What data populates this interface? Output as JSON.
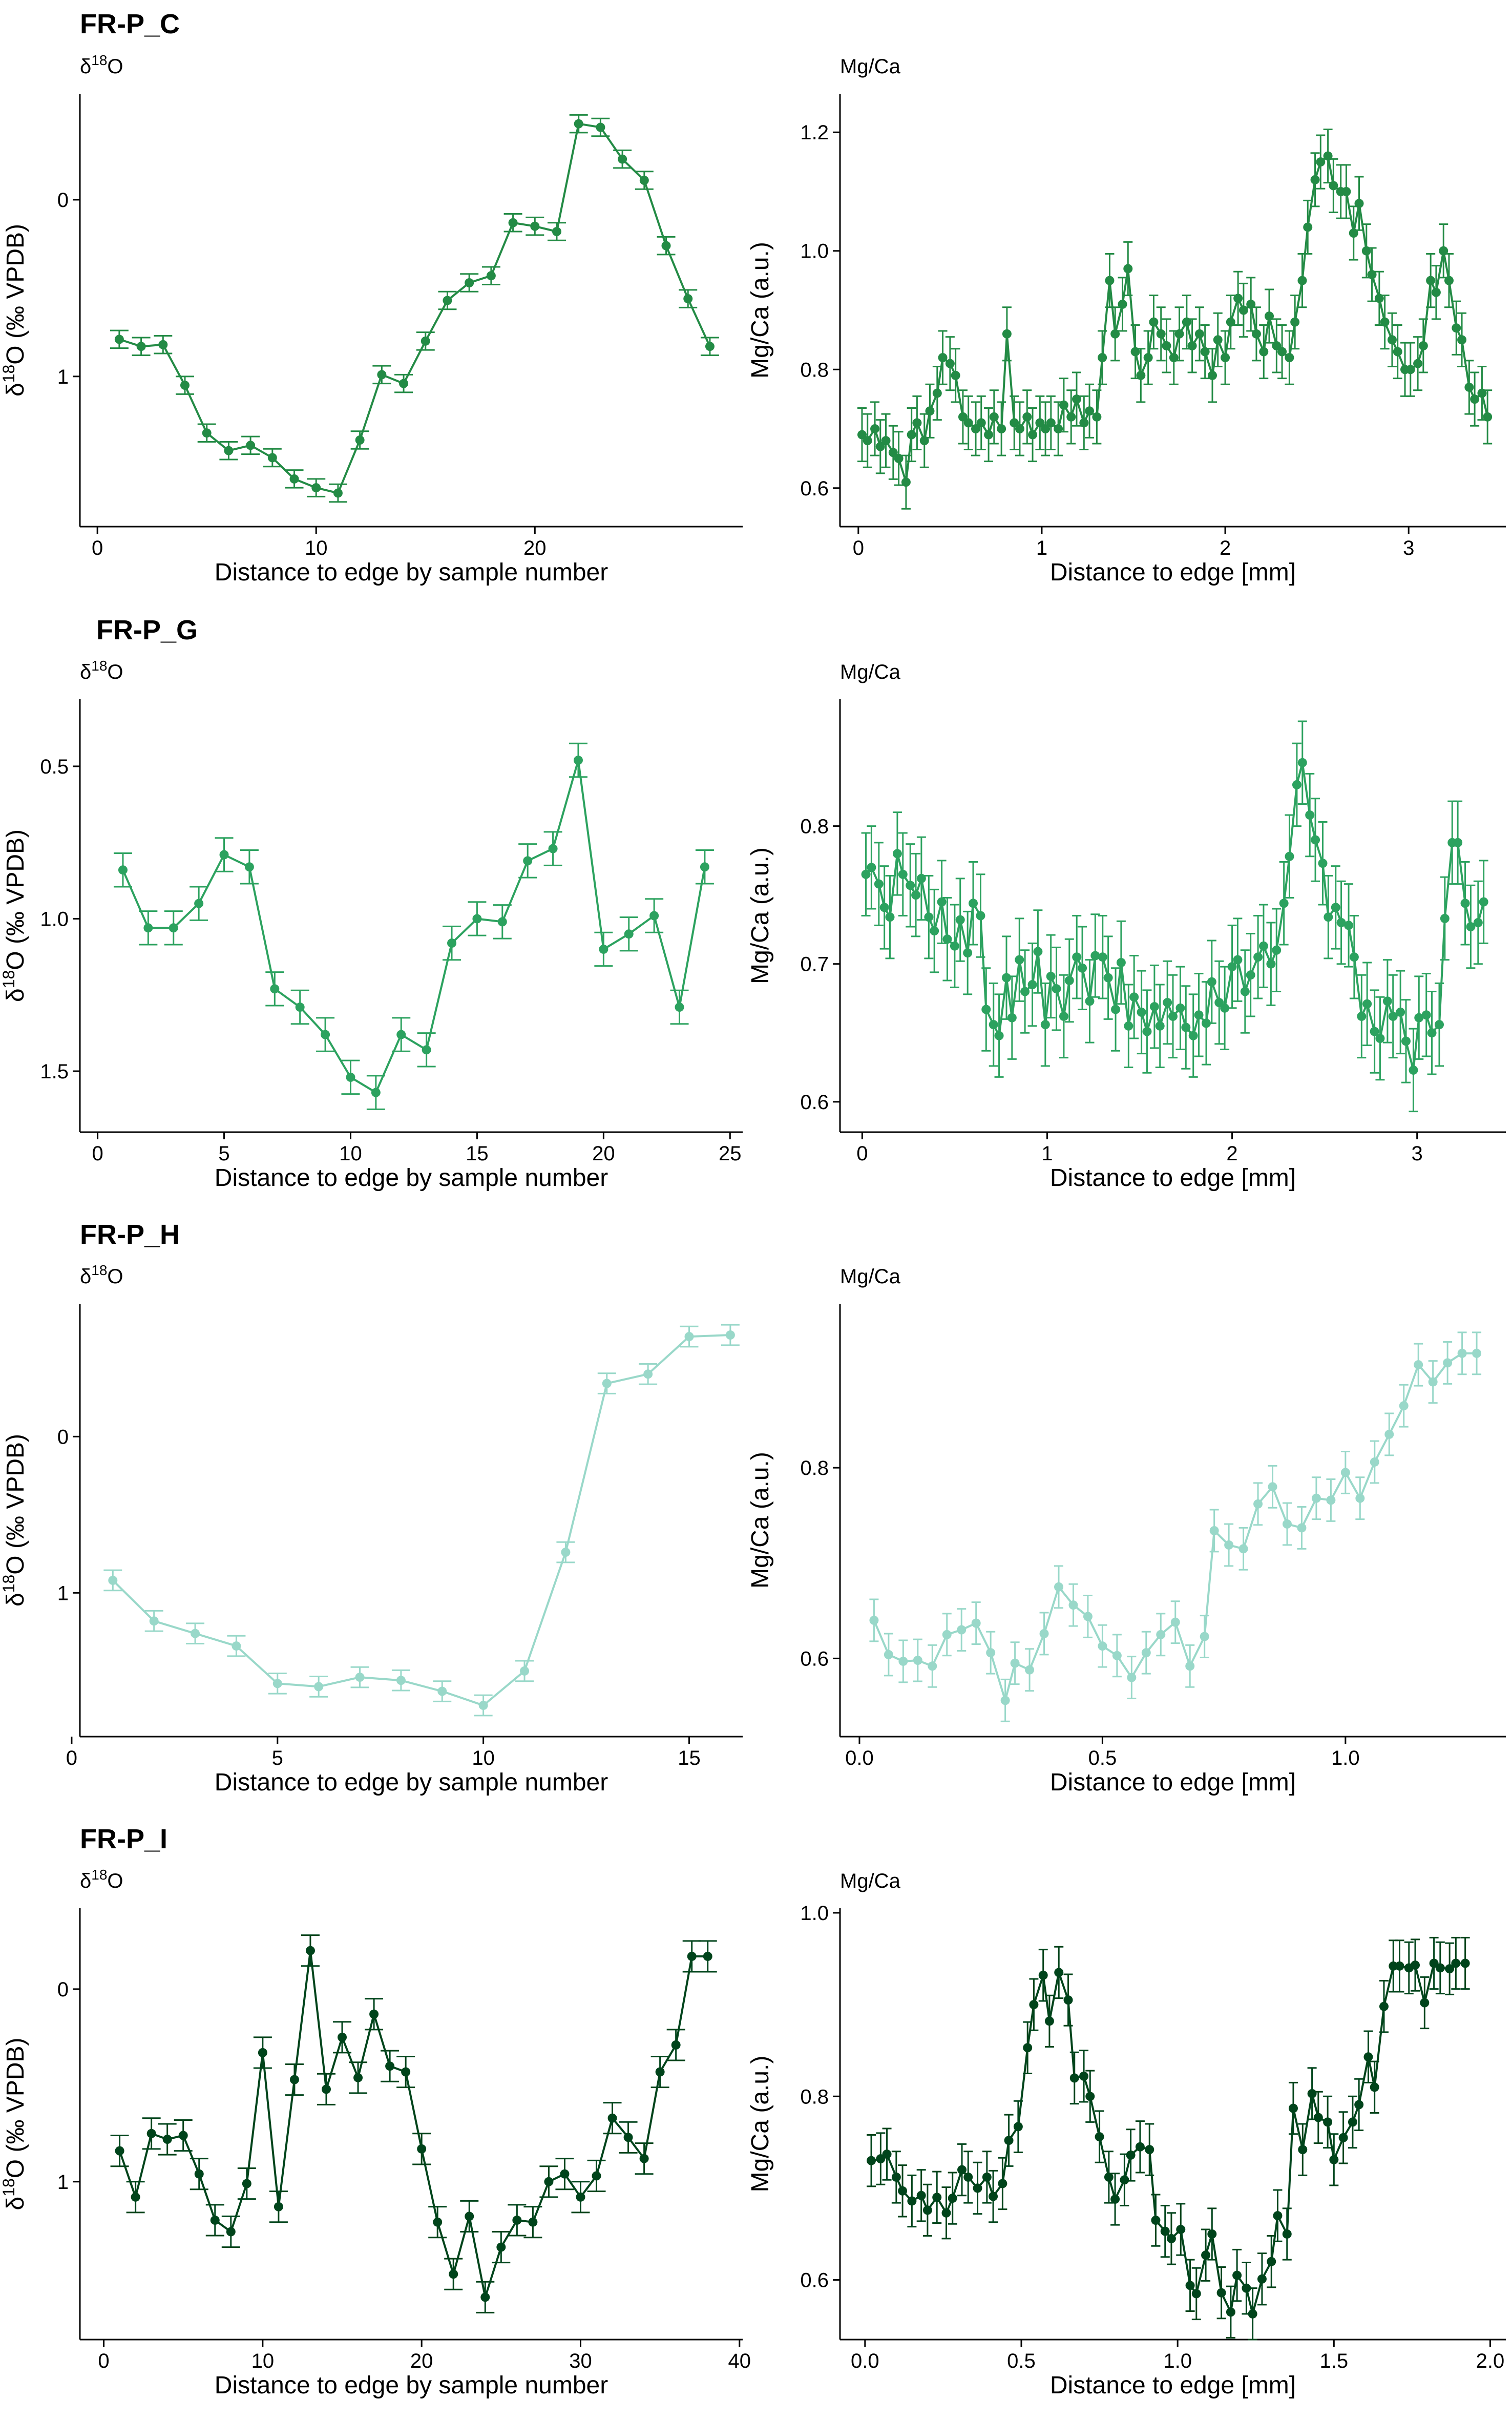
{
  "figure": {
    "rows": [
      {
        "title": "FR-P_C",
        "left_header": "δ18O",
        "right_header": "Mg/Ca"
      },
      {
        "title": "FR-P_G",
        "left_header": "δ18O",
        "right_header": "Mg/Ca"
      },
      {
        "title": "FR-P_H",
        "left_header": "δ18O",
        "right_header": "Mg/Ca"
      },
      {
        "title": "FR-P_I",
        "left_header": "δ18O",
        "right_header": "Mg/Ca"
      }
    ]
  },
  "chart_data": [
    {
      "type": "line",
      "title": "FR-P_C",
      "header": "δ18O",
      "xlabel": "Distance to edge by sample number",
      "ylabel": "δ18O (‰ VPDB)",
      "reversed_y": true,
      "xlim": [
        -0.8,
        29.5
      ],
      "ylim": [
        -0.6,
        1.85
      ],
      "xticks": [
        0,
        10,
        20
      ],
      "yticks": [
        0,
        1
      ],
      "ytick_labels": [
        "0",
        "1"
      ],
      "color": "#238b45",
      "error": 0.05,
      "x": [
        1,
        2,
        3,
        4,
        5,
        6,
        7,
        8,
        9,
        10,
        11,
        12,
        13,
        14,
        15,
        16,
        17,
        18,
        19,
        20,
        21,
        22,
        23,
        24,
        25,
        26,
        27,
        28
      ],
      "y": [
        0.79,
        0.83,
        0.82,
        1.05,
        1.32,
        1.42,
        1.39,
        1.46,
        1.58,
        1.63,
        1.66,
        1.36,
        0.99,
        1.04,
        0.8,
        0.57,
        0.47,
        0.43,
        0.13,
        0.15,
        0.18,
        -0.43,
        -0.41,
        -0.23,
        -0.11,
        0.26,
        0.56,
        0.83
      ],
      "error_bars": true
    },
    {
      "type": "line",
      "title": "FR-P_C",
      "header": "Mg/Ca",
      "xlabel": "Distance to edge [mm]",
      "ylabel": "Mg/Ca (a.u.)",
      "xlim": [
        -0.1,
        3.53
      ],
      "ylim": [
        0.535,
        1.265
      ],
      "xticks": [
        0,
        1,
        2,
        3
      ],
      "yticks": [
        0.6,
        0.8,
        1.0,
        1.2
      ],
      "ytick_labels": [
        "0.6",
        "0.8",
        "1.0",
        "1.2"
      ],
      "color": "#238b45",
      "error": 0.045,
      "x": [
        0.02,
        0.05,
        0.09,
        0.12,
        0.15,
        0.19,
        0.22,
        0.26,
        0.29,
        0.32,
        0.36,
        0.39,
        0.43,
        0.46,
        0.5,
        0.53,
        0.57,
        0.6,
        0.64,
        0.67,
        0.71,
        0.74,
        0.78,
        0.81,
        0.85,
        0.88,
        0.92,
        0.95,
        0.99,
        1.02,
        1.05,
        1.09,
        1.12,
        1.16,
        1.19,
        1.23,
        1.26,
        1.3,
        1.33,
        1.37,
        1.4,
        1.44,
        1.47,
        1.51,
        1.54,
        1.58,
        1.61,
        1.65,
        1.68,
        1.72,
        1.75,
        1.79,
        1.82,
        1.86,
        1.89,
        1.93,
        1.96,
        2.0,
        2.03,
        2.07,
        2.1,
        2.14,
        2.17,
        2.21,
        2.24,
        2.28,
        2.31,
        2.35,
        2.38,
        2.42,
        2.45,
        2.49,
        2.52,
        2.56,
        2.59,
        2.63,
        2.66,
        2.7,
        2.73,
        2.77,
        2.8,
        2.84,
        2.87,
        2.91,
        2.94,
        2.98,
        3.01,
        3.05,
        3.08,
        3.12,
        3.15,
        3.19,
        3.22,
        3.26,
        3.29,
        3.33,
        3.36,
        3.4,
        3.43
      ],
      "y": [
        0.69,
        0.68,
        0.7,
        0.67,
        0.68,
        0.66,
        0.65,
        0.61,
        0.69,
        0.71,
        0.68,
        0.73,
        0.76,
        0.82,
        0.81,
        0.79,
        0.72,
        0.71,
        0.7,
        0.71,
        0.69,
        0.72,
        0.7,
        0.86,
        0.71,
        0.7,
        0.72,
        0.69,
        0.71,
        0.7,
        0.71,
        0.7,
        0.74,
        0.72,
        0.75,
        0.71,
        0.73,
        0.72,
        0.82,
        0.95,
        0.86,
        0.91,
        0.97,
        0.83,
        0.79,
        0.82,
        0.88,
        0.86,
        0.84,
        0.82,
        0.86,
        0.88,
        0.84,
        0.86,
        0.83,
        0.79,
        0.85,
        0.82,
        0.88,
        0.92,
        0.9,
        0.91,
        0.86,
        0.83,
        0.89,
        0.84,
        0.83,
        0.82,
        0.88,
        0.95,
        1.04,
        1.12,
        1.15,
        1.16,
        1.11,
        1.1,
        1.1,
        1.03,
        1.08,
        1.0,
        0.96,
        0.92,
        0.88,
        0.85,
        0.83,
        0.8,
        0.8,
        0.81,
        0.84,
        0.95,
        0.93,
        1.0,
        0.95,
        0.87,
        0.85,
        0.77,
        0.75,
        0.76,
        0.72
      ],
      "error_bars": true
    },
    {
      "type": "line",
      "title": "FR-P_G",
      "header": "δ18O",
      "xlabel": "Distance to edge by sample number",
      "ylabel": "δ18O (‰ VPDB)",
      "reversed_y": true,
      "xlim": [
        -0.7,
        25.5
      ],
      "ylim": [
        0.28,
        1.7
      ],
      "xticks": [
        0,
        5,
        10,
        15,
        20,
        25
      ],
      "yticks": [
        0.5,
        1.0,
        1.5
      ],
      "ytick_labels": [
        "0.5",
        "1.0",
        "1.5"
      ],
      "color": "#2ca25f",
      "error": 0.055,
      "x": [
        1,
        2,
        3,
        4,
        5,
        6,
        7,
        8,
        9,
        10,
        11,
        12,
        13,
        14,
        15,
        16,
        17,
        18,
        19,
        20,
        21,
        22,
        23,
        24
      ],
      "y": [
        0.84,
        1.03,
        1.03,
        0.95,
        0.79,
        0.83,
        1.23,
        1.29,
        1.38,
        1.52,
        1.57,
        1.38,
        1.43,
        1.08,
        1.0,
        1.01,
        0.81,
        0.77,
        0.48,
        1.1,
        1.05,
        0.99,
        1.29,
        0.83
      ],
      "error_bars": true
    },
    {
      "type": "line",
      "title": "FR-P_G",
      "header": "Mg/Ca",
      "xlabel": "Distance to edge [mm]",
      "ylabel": "Mg/Ca (a.u.)",
      "xlim": [
        -0.12,
        3.48
      ],
      "ylim": [
        0.578,
        0.892
      ],
      "xticks": [
        0,
        1,
        2,
        3
      ],
      "yticks": [
        0.6,
        0.7,
        0.8
      ],
      "ytick_labels": [
        "0.6",
        "0.7",
        "0.8"
      ],
      "color": "#2ca25f",
      "error": 0.03,
      "x": [
        0.02,
        0.05,
        0.09,
        0.12,
        0.15,
        0.19,
        0.22,
        0.26,
        0.29,
        0.32,
        0.36,
        0.39,
        0.43,
        0.46,
        0.5,
        0.53,
        0.57,
        0.6,
        0.64,
        0.67,
        0.71,
        0.74,
        0.78,
        0.81,
        0.85,
        0.88,
        0.92,
        0.95,
        0.99,
        1.02,
        1.05,
        1.09,
        1.12,
        1.16,
        1.19,
        1.23,
        1.26,
        1.3,
        1.33,
        1.37,
        1.4,
        1.44,
        1.47,
        1.51,
        1.54,
        1.58,
        1.61,
        1.65,
        1.68,
        1.72,
        1.75,
        1.79,
        1.82,
        1.86,
        1.89,
        1.93,
        1.96,
        2.0,
        2.03,
        2.07,
        2.1,
        2.14,
        2.17,
        2.21,
        2.24,
        2.28,
        2.31,
        2.35,
        2.38,
        2.42,
        2.45,
        2.49,
        2.52,
        2.56,
        2.59,
        2.63,
        2.66,
        2.7,
        2.73,
        2.77,
        2.8,
        2.84,
        2.87,
        2.91,
        2.94,
        2.98,
        3.01,
        3.05,
        3.08,
        3.12,
        3.15,
        3.19,
        3.22,
        3.26,
        3.29,
        3.33,
        3.36
      ],
      "y": [
        0.765,
        0.77,
        0.758,
        0.741,
        0.734,
        0.78,
        0.765,
        0.757,
        0.75,
        0.762,
        0.734,
        0.724,
        0.745,
        0.718,
        0.713,
        0.732,
        0.708,
        0.744,
        0.735,
        0.667,
        0.656,
        0.648,
        0.69,
        0.661,
        0.703,
        0.68,
        0.685,
        0.709,
        0.656,
        0.691,
        0.682,
        0.662,
        0.688,
        0.705,
        0.697,
        0.673,
        0.706,
        0.705,
        0.69,
        0.667,
        0.701,
        0.655,
        0.676,
        0.665,
        0.651,
        0.669,
        0.655,
        0.672,
        0.662,
        0.668,
        0.654,
        0.648,
        0.663,
        0.657,
        0.687,
        0.672,
        0.668,
        0.698,
        0.703,
        0.68,
        0.692,
        0.705,
        0.713,
        0.7,
        0.71,
        0.744,
        0.778,
        0.83,
        0.846,
        0.808,
        0.79,
        0.773,
        0.734,
        0.741,
        0.73,
        0.728,
        0.705,
        0.662,
        0.671,
        0.651,
        0.646,
        0.673,
        0.662,
        0.665,
        0.644,
        0.623,
        0.661,
        0.663,
        0.65,
        0.656,
        0.733,
        0.788,
        0.788,
        0.744,
        0.727,
        0.73,
        0.745
      ],
      "error_bars": true
    },
    {
      "type": "line",
      "title": "FR-P_H",
      "header": "δ18O",
      "xlabel": "Distance to edge by sample number",
      "ylabel": "δ18O (‰ VPDB)",
      "reversed_y": true,
      "xlim": [
        0.2,
        16.3
      ],
      "ylim": [
        -0.85,
        1.92
      ],
      "xticks": [
        0,
        5,
        10,
        15
      ],
      "yticks": [
        0,
        1
      ],
      "ytick_labels": [
        "0",
        "1"
      ],
      "color": "#99d8c9",
      "error": 0.065,
      "x": [
        1,
        2,
        3,
        4,
        5,
        6,
        7,
        8,
        9,
        10,
        11,
        12,
        13,
        14,
        15,
        16
      ],
      "y": [
        0.92,
        1.18,
        1.26,
        1.34,
        1.58,
        1.6,
        1.54,
        1.56,
        1.63,
        1.72,
        1.5,
        0.74,
        -0.34,
        -0.4,
        -0.64,
        -0.65
      ],
      "error_bars": true
    },
    {
      "type": "line",
      "title": "FR-P_H",
      "header": "Mg/Ca",
      "xlabel": "Distance to edge [mm]",
      "ylabel": "Mg/Ca (a.u.)",
      "xlim": [
        -0.04,
        1.33
      ],
      "ylim": [
        0.518,
        0.972
      ],
      "xticks": [
        0,
        0.5,
        1.0
      ],
      "yticks": [
        0.6,
        0.8
      ],
      "ytick_labels": [
        "0.6",
        "0.8"
      ],
      "color": "#99d8c9",
      "error": 0.022,
      "x": [
        0.03,
        0.06,
        0.09,
        0.12,
        0.15,
        0.18,
        0.21,
        0.24,
        0.27,
        0.3,
        0.32,
        0.35,
        0.38,
        0.41,
        0.44,
        0.47,
        0.5,
        0.53,
        0.56,
        0.59,
        0.62,
        0.65,
        0.68,
        0.71,
        0.73,
        0.76,
        0.79,
        0.82,
        0.85,
        0.88,
        0.91,
        0.94,
        0.97,
        1.0,
        1.03,
        1.06,
        1.09,
        1.12,
        1.15,
        1.18,
        1.21,
        1.24,
        1.27
      ],
      "y": [
        0.64,
        0.604,
        0.597,
        0.598,
        0.592,
        0.625,
        0.63,
        0.637,
        0.606,
        0.556,
        0.595,
        0.588,
        0.626,
        0.675,
        0.656,
        0.644,
        0.613,
        0.603,
        0.58,
        0.606,
        0.625,
        0.638,
        0.592,
        0.623,
        0.734,
        0.719,
        0.715,
        0.762,
        0.78,
        0.741,
        0.737,
        0.768,
        0.766,
        0.795,
        0.768,
        0.806,
        0.835,
        0.865,
        0.908,
        0.89,
        0.91,
        0.92,
        0.92
      ],
      "error_bars": true
    },
    {
      "type": "line",
      "title": "FR-P_I",
      "header": "δ18O",
      "xlabel": "Distance to edge by sample number",
      "ylabel": "δ18O (‰ VPDB)",
      "reversed_y": true,
      "xlim": [
        -1.5,
        40.2
      ],
      "ylim": [
        -0.42,
        1.82
      ],
      "xticks": [
        0,
        10,
        20,
        30,
        40
      ],
      "yticks": [
        0,
        1
      ],
      "ytick_labels": [
        "0",
        "1"
      ],
      "color": "#00441b",
      "error": 0.08,
      "x": [
        1,
        2,
        3,
        4,
        5,
        6,
        7,
        8,
        9,
        10,
        11,
        12,
        13,
        14,
        15,
        16,
        17,
        18,
        19,
        20,
        21,
        22,
        23,
        24,
        25,
        26,
        27,
        28,
        29,
        30,
        31,
        32,
        33,
        34,
        35,
        36,
        37,
        38
      ],
      "y": [
        0.84,
        1.08,
        0.75,
        0.78,
        0.76,
        0.96,
        1.2,
        1.26,
        1.01,
        0.33,
        1.13,
        0.47,
        -0.2,
        0.52,
        0.25,
        0.46,
        0.13,
        0.4,
        0.43,
        0.83,
        1.21,
        1.48,
        1.18,
        1.6,
        1.34,
        1.2,
        1.21,
        1.0,
        0.96,
        1.08,
        0.97,
        0.67,
        0.77,
        0.88,
        0.43,
        0.29,
        -0.17,
        -0.17
      ],
      "error_bars": true
    },
    {
      "type": "line",
      "title": "FR-P_I",
      "header": "Mg/Ca",
      "xlabel": "Distance to edge [mm]",
      "ylabel": "Mg/Ca (a.u.)",
      "xlim": [
        -0.08,
        2.05
      ],
      "ylim": [
        0.535,
        1.005
      ],
      "xticks": [
        0,
        0.5,
        1.0,
        1.5,
        2.0
      ],
      "yticks": [
        0.6,
        0.8,
        1.0
      ],
      "ytick_labels": [
        "0.6",
        "0.8",
        "1.0"
      ],
      "color": "#00441b",
      "error": 0.028,
      "x": [
        0.02,
        0.05,
        0.07,
        0.1,
        0.12,
        0.15,
        0.18,
        0.2,
        0.23,
        0.26,
        0.28,
        0.31,
        0.33,
        0.36,
        0.39,
        0.41,
        0.44,
        0.46,
        0.49,
        0.52,
        0.54,
        0.57,
        0.59,
        0.62,
        0.65,
        0.67,
        0.7,
        0.72,
        0.75,
        0.78,
        0.8,
        0.83,
        0.85,
        0.88,
        0.91,
        0.93,
        0.96,
        0.98,
        1.01,
        1.04,
        1.06,
        1.09,
        1.11,
        1.14,
        1.17,
        1.19,
        1.22,
        1.24,
        1.27,
        1.3,
        1.32,
        1.35,
        1.37,
        1.4,
        1.43,
        1.45,
        1.48,
        1.5,
        1.53,
        1.56,
        1.58,
        1.61,
        1.63,
        1.66,
        1.69,
        1.71,
        1.74,
        1.76,
        1.79,
        1.82,
        1.84,
        1.87,
        1.89,
        1.92
      ],
      "y": [
        0.73,
        0.732,
        0.737,
        0.712,
        0.697,
        0.686,
        0.692,
        0.676,
        0.69,
        0.673,
        0.689,
        0.72,
        0.712,
        0.7,
        0.712,
        0.691,
        0.705,
        0.752,
        0.767,
        0.853,
        0.9,
        0.932,
        0.882,
        0.935,
        0.905,
        0.82,
        0.822,
        0.8,
        0.756,
        0.712,
        0.688,
        0.709,
        0.736,
        0.745,
        0.742,
        0.665,
        0.653,
        0.645,
        0.655,
        0.594,
        0.585,
        0.627,
        0.65,
        0.586,
        0.565,
        0.605,
        0.591,
        0.563,
        0.601,
        0.62,
        0.67,
        0.65,
        0.787,
        0.742,
        0.803,
        0.777,
        0.772,
        0.731,
        0.755,
        0.772,
        0.791,
        0.843,
        0.81,
        0.898,
        0.942,
        0.942,
        0.94,
        0.943,
        0.902,
        0.945,
        0.94,
        0.939,
        0.945,
        0.945
      ],
      "error_bars": true
    }
  ]
}
